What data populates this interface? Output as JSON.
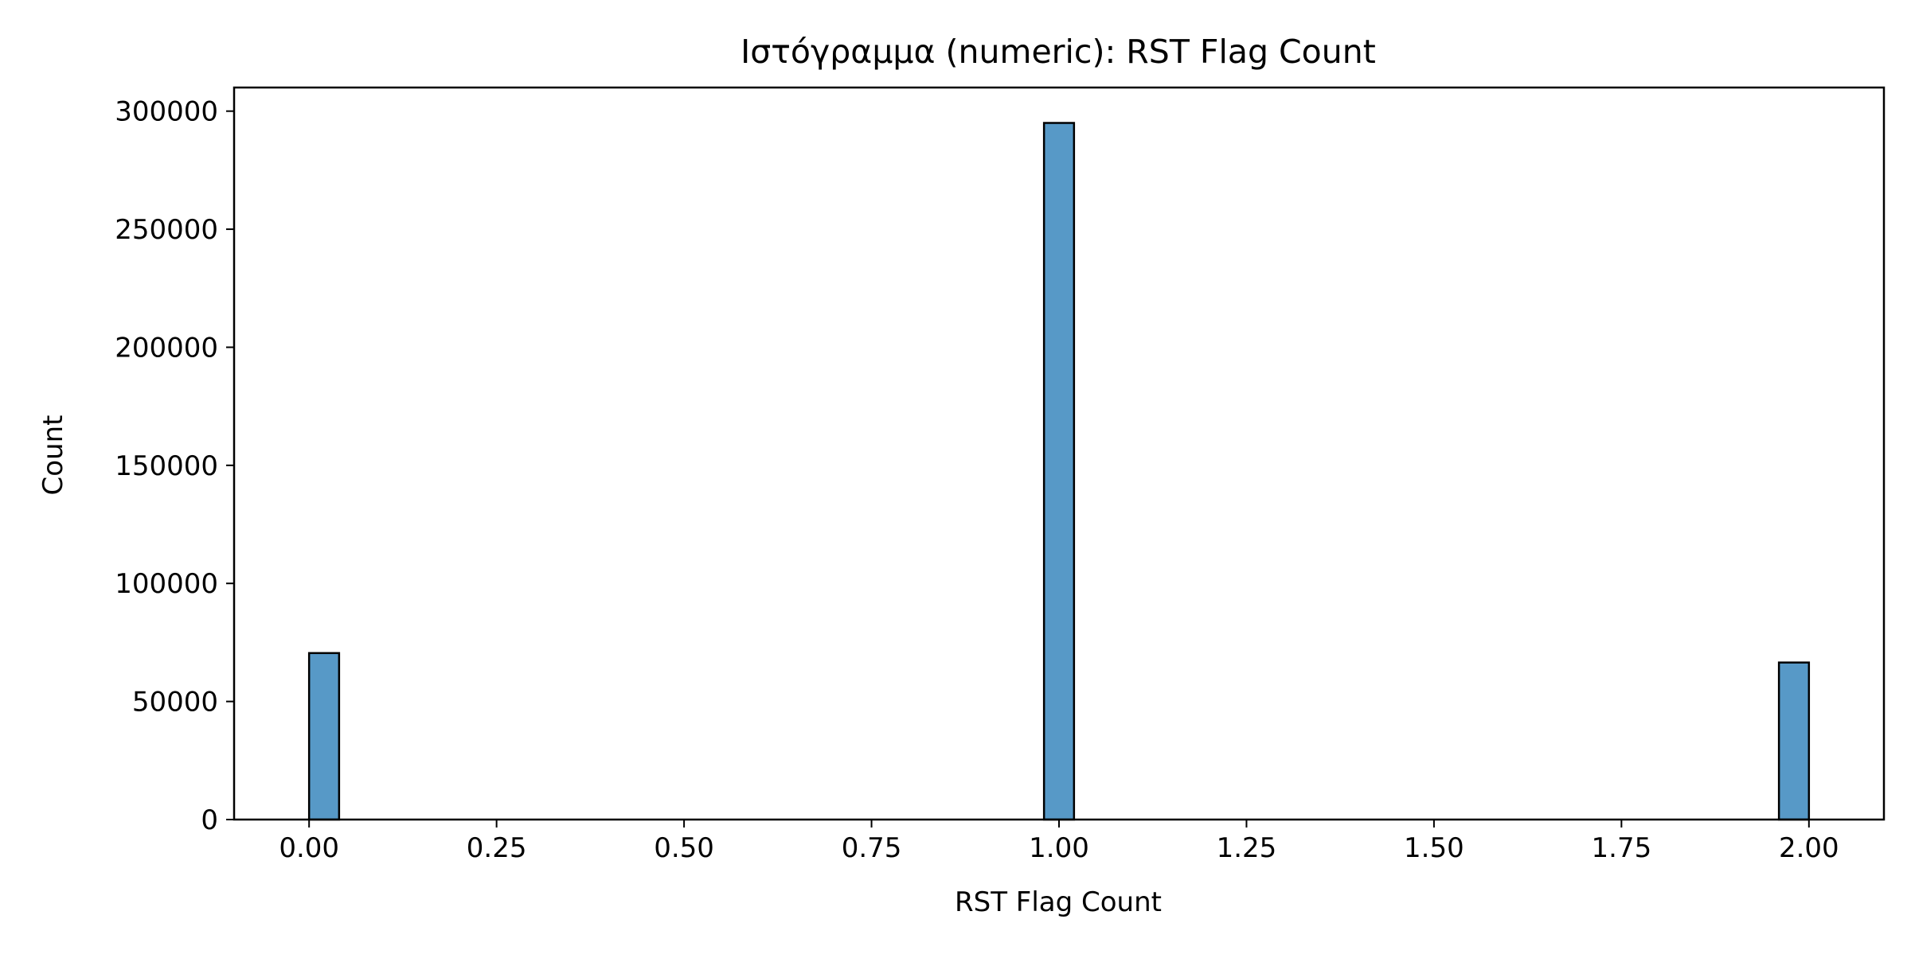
{
  "chart_data": {
    "type": "bar",
    "subtype": "histogram",
    "title": "Ιστόγραμμα (numeric): RST Flag Count",
    "xlabel": "RST Flag Count",
    "ylabel": "Count",
    "xlim": [
      -0.1,
      2.1
    ],
    "ylim": [
      0,
      310000
    ],
    "bin_width": 0.04,
    "bins": [
      {
        "x_start": 0.0,
        "x_end": 0.04,
        "count": 70500
      },
      {
        "x_start": 0.98,
        "x_end": 1.02,
        "count": 295000
      },
      {
        "x_start": 1.96,
        "x_end": 2.0,
        "count": 66500
      }
    ],
    "x_ticks": [
      {
        "value": 0.0,
        "label": "0.00"
      },
      {
        "value": 0.25,
        "label": "0.25"
      },
      {
        "value": 0.5,
        "label": "0.50"
      },
      {
        "value": 0.75,
        "label": "0.75"
      },
      {
        "value": 1.0,
        "label": "1.00"
      },
      {
        "value": 1.25,
        "label": "1.25"
      },
      {
        "value": 1.5,
        "label": "1.50"
      },
      {
        "value": 1.75,
        "label": "1.75"
      },
      {
        "value": 2.0,
        "label": "2.00"
      }
    ],
    "y_ticks": [
      {
        "value": 0,
        "label": "0"
      },
      {
        "value": 50000,
        "label": "50000"
      },
      {
        "value": 100000,
        "label": "100000"
      },
      {
        "value": 150000,
        "label": "150000"
      },
      {
        "value": 200000,
        "label": "200000"
      },
      {
        "value": 250000,
        "label": "250000"
      },
      {
        "value": 300000,
        "label": "300000"
      }
    ],
    "grid": false,
    "legend": "none",
    "colors": {
      "bar_fill": "#5799c7",
      "bar_edge": "#000000",
      "axis": "#000000",
      "background": "#ffffff"
    }
  }
}
